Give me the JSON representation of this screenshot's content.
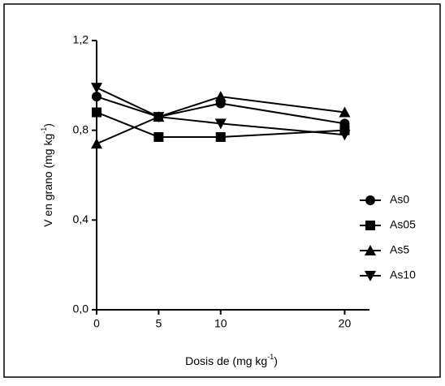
{
  "chart_data": {
    "type": "line",
    "y_label": {
      "text": "V en grano (mg kg",
      "sup": "-1",
      "end": ")"
    },
    "x_label": {
      "text": "Dosis de (mg kg",
      "sup": "-1",
      "end": ")"
    },
    "x": [
      0,
      5,
      10,
      20
    ],
    "xlim": [
      0,
      22
    ],
    "xticks": [
      0,
      5,
      10,
      20
    ],
    "ylim": [
      0,
      1.2
    ],
    "yticks": [
      {
        "value": 0,
        "label": "0,0"
      },
      {
        "value": 0.4,
        "label": "0,4"
      },
      {
        "value": 0.8,
        "label": "0,8"
      },
      {
        "value": 1.2,
        "label": "1,2"
      }
    ],
    "legend": "right",
    "series": [
      {
        "name": "As0",
        "color": "#000000",
        "marker": "circle",
        "values": [
          0.95,
          0.86,
          0.92,
          0.83
        ]
      },
      {
        "name": "As05",
        "color": "#000000",
        "marker": "square",
        "values": [
          0.88,
          0.77,
          0.77,
          0.8
        ]
      },
      {
        "name": "As5",
        "color": "#000000",
        "marker": "triangle-up",
        "values": [
          0.74,
          0.86,
          0.95,
          0.88
        ]
      },
      {
        "name": "As10",
        "color": "#000000",
        "marker": "triangle-down",
        "values": [
          0.99,
          0.86,
          0.83,
          0.78
        ]
      }
    ]
  }
}
